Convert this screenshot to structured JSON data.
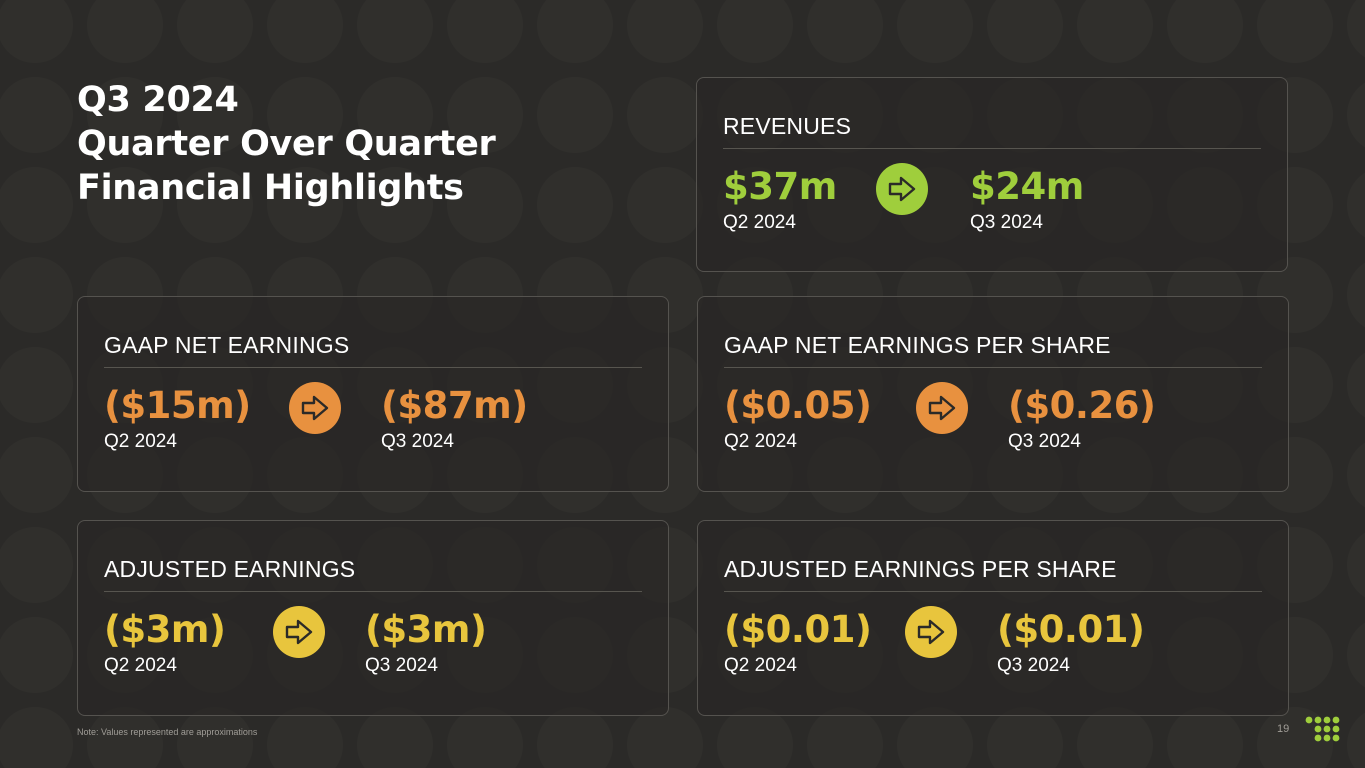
{
  "title": {
    "line1": "Q3 2024",
    "line2": "Quarter Over Quarter",
    "line3": "Financial Highlights"
  },
  "colors": {
    "green": "#9fce3c",
    "orange": "#e8913f",
    "yellow": "#e8c53d",
    "background": "#2b2a28"
  },
  "cards": {
    "revenues": {
      "label": "REVENUES",
      "from_value": "$37m",
      "from_period": "Q2 2024",
      "to_value": "$24m",
      "to_period": "Q3 2024",
      "icon": "arrow-right-icon"
    },
    "gaap_net_earnings": {
      "label": "GAAP NET EARNINGS",
      "from_value": "($15m)",
      "from_period": "Q2 2024",
      "to_value": "($87m)",
      "to_period": "Q3 2024",
      "icon": "arrow-right-icon"
    },
    "gaap_eps": {
      "label": "GAAP NET EARNINGS PER SHARE",
      "from_value": "($0.05)",
      "from_period": "Q2 2024",
      "to_value": "($0.26)",
      "to_period": "Q3 2024",
      "icon": "arrow-right-icon"
    },
    "adjusted_earnings": {
      "label": "ADJUSTED EARNINGS",
      "from_value": "($3m)",
      "from_period": "Q2 2024",
      "to_value": "($3m)",
      "to_period": "Q3 2024",
      "icon": "arrow-right-icon"
    },
    "adjusted_eps": {
      "label": "ADJUSTED EARNINGS PER SHARE",
      "from_value": "($0.01)",
      "from_period": "Q2 2024",
      "to_value": "($0.01)",
      "to_period": "Q3 2024",
      "icon": "arrow-right-icon"
    }
  },
  "footer": {
    "note": "Note: Values represented are approximations",
    "page_number": "19"
  }
}
